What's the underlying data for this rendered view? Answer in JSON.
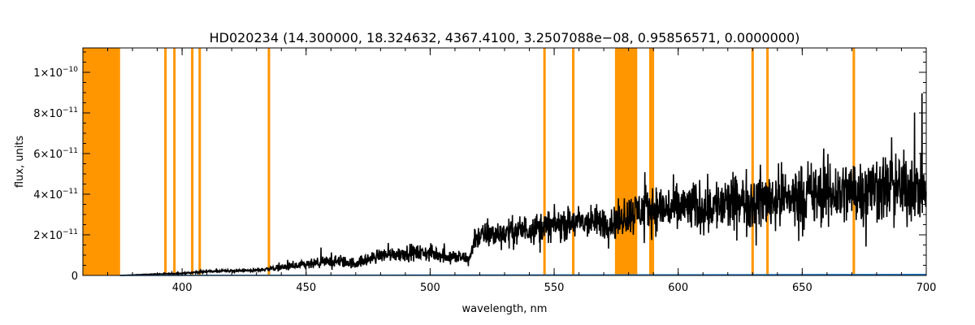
{
  "chart_data": {
    "type": "line",
    "title": "HD020234   (14.300000, 18.324632, 4367.4100, 3.2507088e−08, 0.95856571, 0.0000000)",
    "xlabel": "wavelength, nm",
    "ylabel": "flux, units",
    "xlim": [
      360,
      700
    ],
    "ylim": [
      0,
      1.12e-10
    ],
    "x_ticks": [
      {
        "value": 400,
        "label": "400"
      },
      {
        "value": 450,
        "label": "450"
      },
      {
        "value": 500,
        "label": "500"
      },
      {
        "value": 550,
        "label": "550"
      },
      {
        "value": 600,
        "label": "600"
      },
      {
        "value": 650,
        "label": "650"
      },
      {
        "value": 700,
        "label": "700"
      }
    ],
    "y_ticks": [
      {
        "value": 0,
        "base": "0",
        "exp": ""
      },
      {
        "value": 2e-11,
        "base": "2×10",
        "exp": "−11"
      },
      {
        "value": 4e-11,
        "base": "4×10",
        "exp": "−11"
      },
      {
        "value": 6e-11,
        "base": "6×10",
        "exp": "−11"
      },
      {
        "value": 8e-11,
        "base": "8×10",
        "exp": "−11"
      },
      {
        "value": 1e-10,
        "base": "1×10",
        "exp": "−10"
      }
    ],
    "x_minor_step": 10,
    "y_minor_step": 5e-12,
    "masked_bands": [
      {
        "start": 360,
        "end": 375
      },
      {
        "start": 392.8,
        "end": 393.8
      },
      {
        "start": 396.4,
        "end": 397.4
      },
      {
        "start": 403.6,
        "end": 404.6
      },
      {
        "start": 406.6,
        "end": 407.6
      },
      {
        "start": 434.5,
        "end": 435.5
      },
      {
        "start": 545.6,
        "end": 546.6
      },
      {
        "start": 557.2,
        "end": 558.2
      },
      {
        "start": 574.5,
        "end": 583.5
      },
      {
        "start": 588.3,
        "end": 589.3
      },
      {
        "start": 589.3,
        "end": 590.3
      },
      {
        "start": 629.5,
        "end": 630.5
      },
      {
        "start": 635.5,
        "end": 636.5
      },
      {
        "start": 670.3,
        "end": 671.3
      }
    ],
    "series": [
      {
        "color": "#000000",
        "style": "noisy spectrum",
        "envelope_x": [
          375,
          385,
          400,
          410,
          430,
          440,
          450,
          460,
          470,
          480,
          490,
          500,
          510,
          516,
          518,
          530,
          545,
          560,
          574,
          584,
          590,
          600,
          620,
          640,
          660,
          680,
          690,
          700
        ],
        "envelope_mean": [
          0,
          5e-13,
          1e-12,
          2e-12,
          2.5e-12,
          4e-12,
          5e-12,
          7e-12,
          6e-12,
          1e-11,
          1.1e-11,
          1.1e-11,
          9e-12,
          8e-12,
          1.9e-11,
          2.1e-11,
          2.4e-11,
          2.6e-11,
          2.6e-11,
          3.2e-11,
          3.3e-11,
          3.3e-11,
          3.5e-11,
          3.8e-11,
          4e-11,
          4.3e-11,
          4.3e-11,
          4.3e-11
        ],
        "envelope_spread": [
          0,
          2e-13,
          5e-13,
          8e-13,
          1e-12,
          2.5e-12,
          3.5e-12,
          4.5e-12,
          4e-12,
          5e-12,
          5.5e-12,
          6e-12,
          5e-12,
          5e-12,
          9e-12,
          1e-11,
          1.1e-11,
          1.2e-11,
          1.2e-11,
          1.6e-11,
          1.7e-11,
          1.8e-11,
          2e-11,
          2.2e-11,
          2.4e-11,
          2.5e-11,
          2.5e-11,
          2.4e-11
        ]
      },
      {
        "color": "#1a75c9",
        "style": "baseline",
        "x": [
          375,
          700
        ],
        "y": [
          0,
          5e-13
        ]
      }
    ],
    "colors": {
      "mask": "#ff9600",
      "spectrum": "#000000",
      "baseline": "#1a75c9",
      "axes": "#000000",
      "background": "#ffffff"
    },
    "grid": false,
    "legend": "none"
  }
}
